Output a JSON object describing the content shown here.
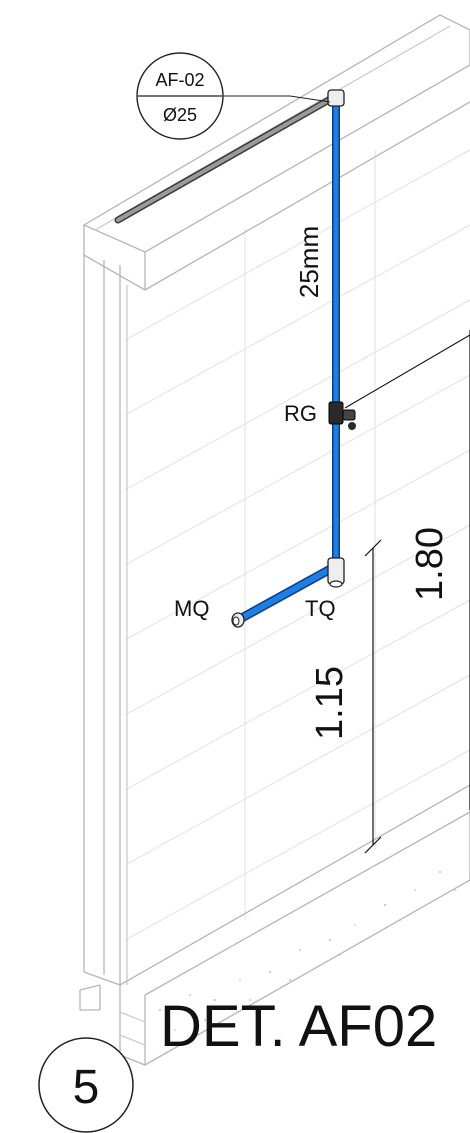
{
  "tag": {
    "line1": "AF-02",
    "line2": "Ø25"
  },
  "pipe_size_label": "25mm",
  "fittings": {
    "rg": "RG",
    "tq": "TQ",
    "mq": "MQ"
  },
  "dimensions": {
    "total_height": "1.80",
    "outlet_height": "1.15"
  },
  "detail": {
    "title": "DET. AF02",
    "number": "5"
  },
  "colors": {
    "pipe": "#1f7fe0",
    "pipe_edge": "#0b3d8c",
    "pipe_horizontal_top": "#9a9a9a",
    "structure": "#c9c9c9"
  }
}
